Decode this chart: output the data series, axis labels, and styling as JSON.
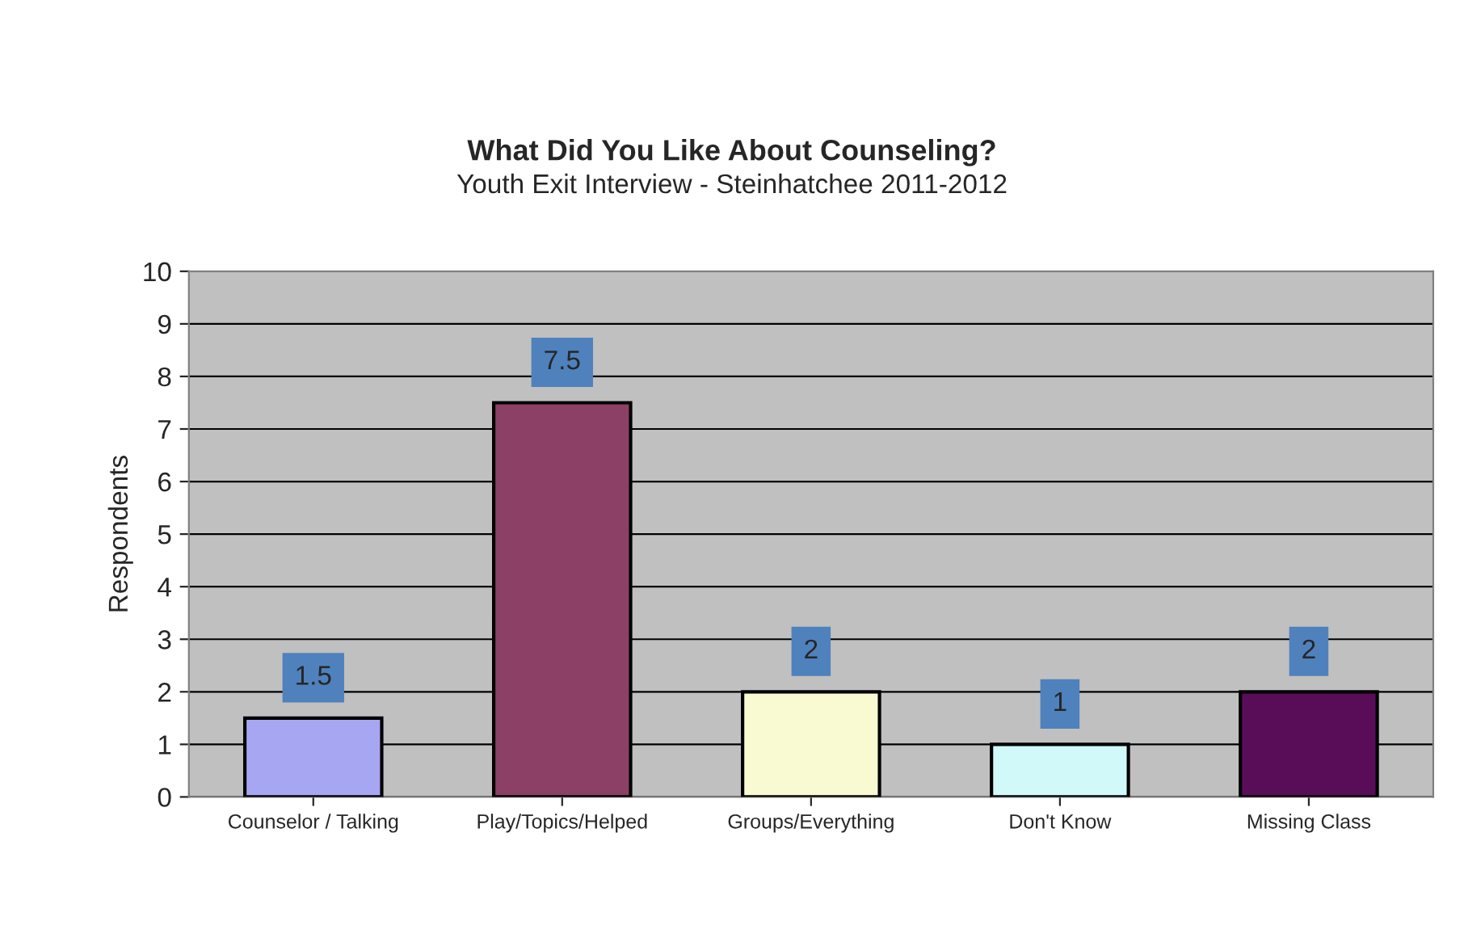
{
  "chart_data": {
    "type": "bar",
    "title": "What Did You Like About Counseling?",
    "subtitle": "Youth Exit Interview - Steinhatchee 2011-2012",
    "ylabel": "Respondents",
    "categories": [
      "Counselor / Talking",
      "Play/Topics/Helped",
      "Groups/Everything",
      "Don't Know",
      "Missing Class"
    ],
    "values": [
      1.5,
      7.5,
      2,
      1,
      2
    ],
    "colors": [
      "#9999ff",
      "#993366",
      "#ffffcc",
      "#ccffff",
      "#660066"
    ],
    "ylim": [
      0,
      10
    ],
    "yticks": [
      0,
      1,
      2,
      3,
      4,
      5,
      6,
      7,
      8,
      9,
      10
    ],
    "grid": "y",
    "data_labels": true,
    "legend": false
  }
}
